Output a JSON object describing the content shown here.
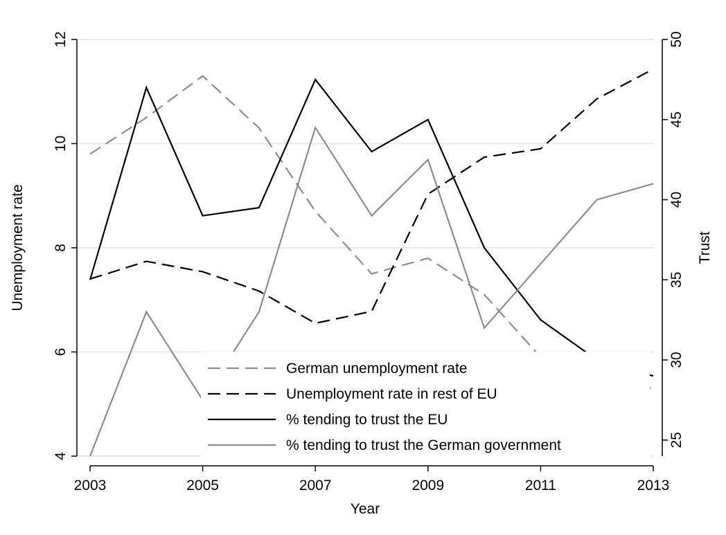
{
  "chart_data": {
    "type": "line",
    "title": "",
    "xlabel": "Year",
    "ylabel_left": "Unemployment rate",
    "ylabel_right": "Trust",
    "x": [
      2003,
      2004,
      2005,
      2006,
      2007,
      2008,
      2009,
      2010,
      2011,
      2012,
      2013
    ],
    "x_ticks": [
      "2003",
      "2005",
      "2007",
      "2009",
      "2011",
      "2013"
    ],
    "xlim": [
      2003,
      2013
    ],
    "ylim_left": [
      4,
      12
    ],
    "y_ticks_left": [
      "4",
      "6",
      "8",
      "10",
      "12"
    ],
    "ylim_right": [
      24,
      50
    ],
    "y_ticks_right": [
      "25",
      "30",
      "35",
      "40",
      "45",
      "50"
    ],
    "grid": true,
    "legend_position": "bottom-right",
    "series": [
      {
        "name": "German unemployment rate",
        "axis": "left",
        "style": "dashed",
        "color": "#8c8c8c",
        "values": [
          9.8,
          10.5,
          11.3,
          10.3,
          8.7,
          7.5,
          7.8,
          7.1,
          5.9,
          5.5,
          5.3
        ]
      },
      {
        "name": "Unemployment rate in rest of EU",
        "axis": "left",
        "style": "dashed",
        "color": "#000000",
        "values": [
          7.4,
          7.74,
          7.54,
          7.17,
          6.55,
          6.78,
          9.03,
          9.74,
          9.9,
          10.86,
          11.43
        ]
      },
      {
        "name": "% tending to trust the EU",
        "axis": "right",
        "style": "solid",
        "color": "#000000",
        "values": [
          35,
          47,
          39,
          39.5,
          47.5,
          43,
          45,
          37,
          32.5,
          30,
          29
        ]
      },
      {
        "name": "% tending to trust the German government",
        "axis": "right",
        "style": "solid",
        "color": "#8c8c8c",
        "values": [
          24,
          33,
          27.5,
          33,
          44.5,
          39,
          42.5,
          32,
          36,
          40,
          41
        ]
      }
    ]
  }
}
